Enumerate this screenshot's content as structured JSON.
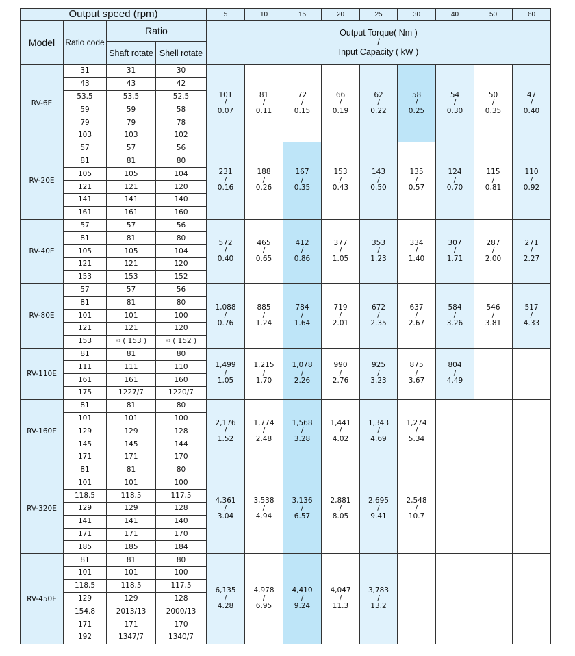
{
  "header": {
    "output_speed_label": "Output speed (rpm)",
    "speeds": [
      "5",
      "10",
      "15",
      "20",
      "25",
      "30",
      "40",
      "50",
      "60"
    ],
    "model_label": "Model",
    "ratio_code_label": "Ratio code",
    "ratio_label": "Ratio",
    "shaft_rotate_label": "Shaft rotate",
    "shell_rotate_label": "Shell rotate",
    "torque_label": "Output Torque( Nm )",
    "slash": "/",
    "capacity_label": "Input Capacity ( kW )"
  },
  "shading": {
    "light_color": "#e0f2fc",
    "highlight_color": "#bee5f8",
    "header_color": "#dcf0fb",
    "light_speeds": [
      "5",
      "25",
      "40",
      "60"
    ]
  },
  "note_mark": "※1",
  "models": [
    {
      "model": "RV-6E",
      "highlight_speed": "30",
      "ratios": [
        [
          "31",
          "31",
          "30"
        ],
        [
          "43",
          "43",
          "42"
        ],
        [
          "53.5",
          "53.5",
          "52.5"
        ],
        [
          "59",
          "59",
          "58"
        ],
        [
          "79",
          "79",
          "78"
        ],
        [
          "103",
          "103",
          "102"
        ]
      ],
      "torque": [
        [
          "101",
          "0.07"
        ],
        [
          "81",
          "0.11"
        ],
        [
          "72",
          "0.15"
        ],
        [
          "66",
          "0.19"
        ],
        [
          "62",
          "0.22"
        ],
        [
          "58",
          "0.25"
        ],
        [
          "54",
          "0.30"
        ],
        [
          "50",
          "0.35"
        ],
        [
          "47",
          "0.40"
        ]
      ]
    },
    {
      "model": "RV-20E",
      "highlight_speed": "15",
      "ratios": [
        [
          "57",
          "57",
          "56"
        ],
        [
          "81",
          "81",
          "80"
        ],
        [
          "105",
          "105",
          "104"
        ],
        [
          "121",
          "121",
          "120"
        ],
        [
          "141",
          "141",
          "140"
        ],
        [
          "161",
          "161",
          "160"
        ]
      ],
      "torque": [
        [
          "231",
          "0.16"
        ],
        [
          "188",
          "0.26"
        ],
        [
          "167",
          "0.35"
        ],
        [
          "153",
          "0.43"
        ],
        [
          "143",
          "0.50"
        ],
        [
          "135",
          "0.57"
        ],
        [
          "124",
          "0.70"
        ],
        [
          "115",
          "0.81"
        ],
        [
          "110",
          "0.92"
        ]
      ]
    },
    {
      "model": "RV-40E",
      "highlight_speed": "15",
      "ratios": [
        [
          "57",
          "57",
          "56"
        ],
        [
          "81",
          "81",
          "80"
        ],
        [
          "105",
          "105",
          "104"
        ],
        [
          "121",
          "121",
          "120"
        ],
        [
          "153",
          "153",
          "152"
        ]
      ],
      "torque": [
        [
          "572",
          "0.40"
        ],
        [
          "465",
          "0.65"
        ],
        [
          "412",
          "0.86"
        ],
        [
          "377",
          "1.05"
        ],
        [
          "353",
          "1.23"
        ],
        [
          "334",
          "1.40"
        ],
        [
          "307",
          "1.71"
        ],
        [
          "287",
          "2.00"
        ],
        [
          "271",
          "2.27"
        ]
      ]
    },
    {
      "model": "RV-80E",
      "highlight_speed": "15",
      "ratios": [
        [
          "57",
          "57",
          "56"
        ],
        [
          "81",
          "81",
          "80"
        ],
        [
          "101",
          "101",
          "100"
        ],
        [
          "121",
          "121",
          "120"
        ],
        [
          "153",
          "( 153 )",
          "( 152 )"
        ]
      ],
      "noted_row": 4,
      "torque": [
        [
          "1,088",
          "0.76"
        ],
        [
          "885",
          "1.24"
        ],
        [
          "784",
          "1.64"
        ],
        [
          "719",
          "2.01"
        ],
        [
          "672",
          "2.35"
        ],
        [
          "637",
          "2.67"
        ],
        [
          "584",
          "3.26"
        ],
        [
          "546",
          "3.81"
        ],
        [
          "517",
          "4.33"
        ]
      ]
    },
    {
      "model": "RV-110E",
      "highlight_speed": "15",
      "ratios": [
        [
          "81",
          "81",
          "80"
        ],
        [
          "111",
          "111",
          "110"
        ],
        [
          "161",
          "161",
          "160"
        ],
        [
          "175",
          "1227/7",
          "1220/7"
        ]
      ],
      "torque": [
        [
          "1,499",
          "1.05"
        ],
        [
          "1,215",
          "1.70"
        ],
        [
          "1,078",
          "2.26"
        ],
        [
          "990",
          "2.76"
        ],
        [
          "925",
          "3.23"
        ],
        [
          "875",
          "3.67"
        ],
        [
          "804",
          "4.49"
        ],
        null,
        null
      ]
    },
    {
      "model": "RV-160E",
      "highlight_speed": "15",
      "ratios": [
        [
          "81",
          "81",
          "80"
        ],
        [
          "101",
          "101",
          "100"
        ],
        [
          "129",
          "129",
          "128"
        ],
        [
          "145",
          "145",
          "144"
        ],
        [
          "171",
          "171",
          "170"
        ]
      ],
      "torque": [
        [
          "2,176",
          "1.52"
        ],
        [
          "1,774",
          "2.48"
        ],
        [
          "1,568",
          "3.28"
        ],
        [
          "1,441",
          "4.02"
        ],
        [
          "1,343",
          "4.69"
        ],
        [
          "1,274",
          "5.34"
        ],
        null,
        null,
        null
      ]
    },
    {
      "model": "RV-320E",
      "highlight_speed": "15",
      "ratios": [
        [
          "81",
          "81",
          "80"
        ],
        [
          "101",
          "101",
          "100"
        ],
        [
          "118.5",
          "118.5",
          "117.5"
        ],
        [
          "129",
          "129",
          "128"
        ],
        [
          "141",
          "141",
          "140"
        ],
        [
          "171",
          "171",
          "170"
        ],
        [
          "185",
          "185",
          "184"
        ]
      ],
      "torque": [
        [
          "4,361",
          "3.04"
        ],
        [
          "3,538",
          "4.94"
        ],
        [
          "3,136",
          "6.57"
        ],
        [
          "2,881",
          "8.05"
        ],
        [
          "2,695",
          "9.41"
        ],
        [
          "2,548",
          "10.7"
        ],
        null,
        null,
        null
      ]
    },
    {
      "model": "RV-450E",
      "highlight_speed": "15",
      "ratios": [
        [
          "81",
          "81",
          "80"
        ],
        [
          "101",
          "101",
          "100"
        ],
        [
          "118.5",
          "118.5",
          "117.5"
        ],
        [
          "129",
          "129",
          "128"
        ],
        [
          "154.8",
          "2013/13",
          "2000/13"
        ],
        [
          "171",
          "171",
          "170"
        ],
        [
          "192",
          "1347/7",
          "1340/7"
        ]
      ],
      "torque": [
        [
          "6,135",
          "4.28"
        ],
        [
          "4,978",
          "6.95"
        ],
        [
          "4,410",
          "9.24"
        ],
        [
          "4,047",
          "11.3"
        ],
        [
          "3,783",
          "13.2"
        ],
        null,
        null,
        null,
        null
      ]
    }
  ]
}
